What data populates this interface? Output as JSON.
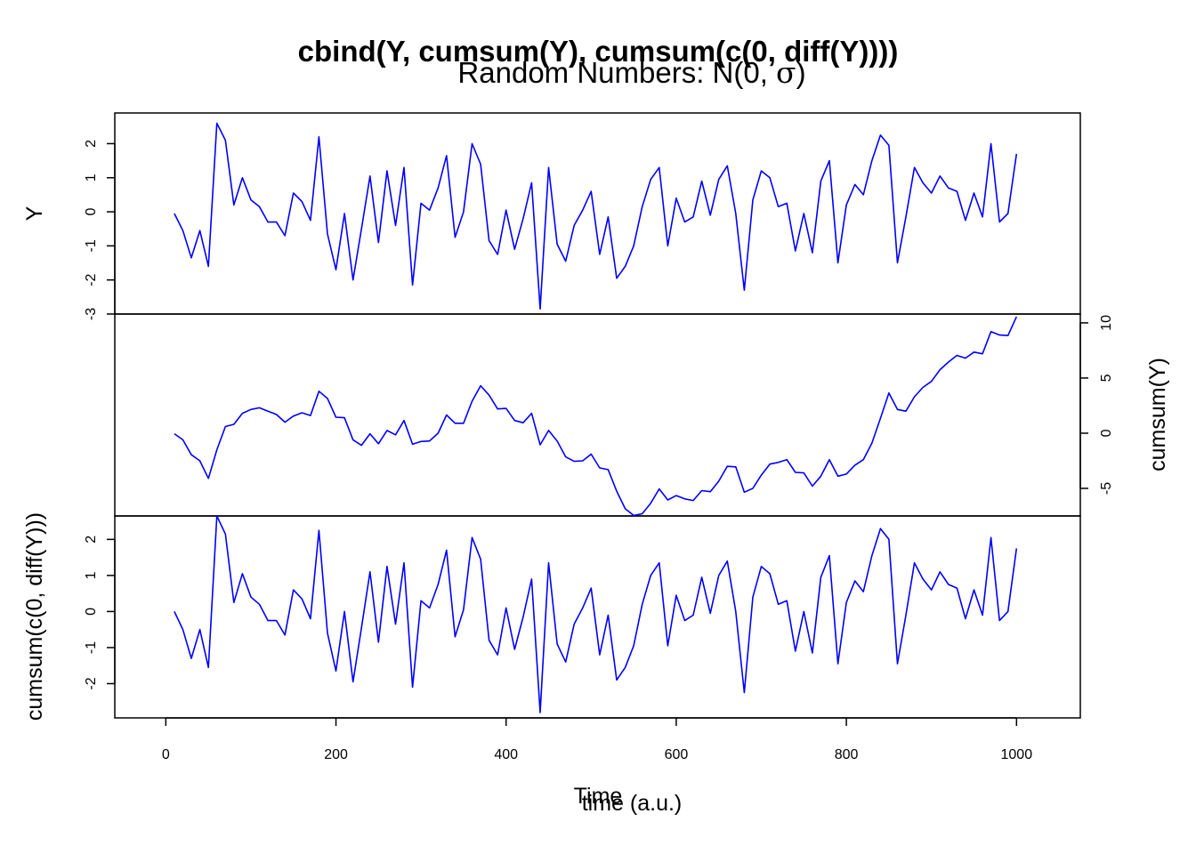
{
  "chart_data": {
    "type": "line",
    "title": "cbind(Y, cumsum(Y), cumsum(c(0, diff(Y))))",
    "subtitle_prefix": "Random Numbers: N(0, ",
    "subtitle_symbol": "σ",
    "subtitle_suffix": ")",
    "xlabel_main": "Time",
    "xlabel_overlay": "time (a.u.)",
    "x_ticks": [
      "0",
      "200",
      "400",
      "600",
      "800",
      "1000"
    ],
    "x_tick_values": [
      0,
      200,
      400,
      600,
      800,
      1000
    ],
    "xlim": [
      -60,
      1075
    ],
    "line_color": "#0000ff",
    "x": [
      10,
      20,
      30,
      40,
      50,
      60,
      70,
      80,
      90,
      100,
      110,
      120,
      130,
      140,
      150,
      160,
      170,
      180,
      190,
      200,
      210,
      220,
      230,
      240,
      250,
      260,
      270,
      280,
      290,
      300,
      310,
      320,
      330,
      340,
      350,
      360,
      370,
      380,
      390,
      400,
      410,
      420,
      430,
      440,
      450,
      460,
      470,
      480,
      490,
      500,
      510,
      520,
      530,
      540,
      550,
      560,
      570,
      580,
      590,
      600,
      610,
      620,
      630,
      640,
      650,
      660,
      670,
      680,
      690,
      700,
      710,
      720,
      730,
      740,
      750,
      760,
      770,
      780,
      790,
      800,
      810,
      820,
      830,
      840,
      850,
      860,
      870,
      880,
      890,
      900,
      910,
      920,
      930,
      940,
      950,
      960,
      970,
      980,
      990,
      1000
    ],
    "panels": [
      {
        "ylabel": "Y",
        "axis_side": "left",
        "ylim": [
          -3,
          2.9
        ],
        "y_ticks": [
          "-3",
          "-2",
          "-1",
          "0",
          "1",
          "2"
        ],
        "y_tick_values": [
          -3,
          -2,
          -1,
          0,
          1,
          2
        ],
        "values": [
          -0.05,
          -0.55,
          -1.35,
          -0.55,
          -1.6,
          2.6,
          2.1,
          0.2,
          1.0,
          0.35,
          0.15,
          -0.3,
          -0.3,
          -0.7,
          0.55,
          0.3,
          -0.25,
          2.2,
          -0.65,
          -1.7,
          -0.05,
          -2.0,
          -0.5,
          1.05,
          -0.9,
          1.2,
          -0.4,
          1.3,
          -2.15,
          0.25,
          0.05,
          0.7,
          1.65,
          -0.75,
          0.0,
          2.0,
          1.4,
          -0.85,
          -1.25,
          0.05,
          -1.1,
          -0.2,
          0.85,
          -2.85,
          1.3,
          -0.95,
          -1.45,
          -0.4,
          0.05,
          0.6,
          -1.25,
          -0.15,
          -1.95,
          -1.6,
          -1.0,
          0.15,
          0.95,
          1.3,
          -1.0,
          0.4,
          -0.3,
          -0.15,
          0.9,
          -0.1,
          0.95,
          1.35,
          -0.05,
          -2.3,
          0.35,
          1.2,
          1.0,
          0.15,
          0.25,
          -1.15,
          -0.05,
          -1.2,
          0.9,
          1.5,
          -1.5,
          0.2,
          0.8,
          0.5,
          1.5,
          2.25,
          1.95,
          -1.5,
          -0.15,
          1.3,
          0.85,
          0.55,
          1.05,
          0.7,
          0.6,
          -0.25,
          0.55,
          -0.15,
          2.0,
          -0.3,
          -0.05,
          1.7
        ]
      },
      {
        "ylabel": "cumsum(Y)",
        "axis_side": "right",
        "ylim": [
          -7.5,
          10.8
        ],
        "y_ticks": [
          "-5",
          "0",
          "5",
          "10"
        ],
        "y_tick_values": [
          -5,
          0,
          5,
          10
        ],
        "values": [
          -0.05,
          -0.6,
          -1.95,
          -2.5,
          -4.1,
          -1.5,
          0.6,
          0.8,
          1.8,
          2.15,
          2.3,
          2.0,
          1.7,
          1.0,
          1.55,
          1.85,
          1.6,
          3.8,
          3.15,
          1.45,
          1.4,
          -0.6,
          -1.1,
          -0.05,
          -0.95,
          0.25,
          -0.15,
          1.15,
          -1.0,
          -0.75,
          -0.7,
          0.0,
          1.65,
          0.9,
          0.9,
          2.9,
          4.3,
          3.45,
          2.2,
          2.25,
          1.15,
          0.95,
          1.8,
          -1.05,
          0.25,
          -0.7,
          -2.15,
          -2.55,
          -2.5,
          -1.9,
          -3.15,
          -3.3,
          -5.25,
          -6.85,
          -7.45,
          -7.3,
          -6.35,
          -5.05,
          -6.05,
          -5.65,
          -5.95,
          -6.1,
          -5.2,
          -5.3,
          -4.35,
          -3.0,
          -3.05,
          -5.35,
          -5.0,
          -3.8,
          -2.8,
          -2.65,
          -2.4,
          -3.55,
          -3.6,
          -4.8,
          -3.9,
          -2.4,
          -3.9,
          -3.7,
          -2.9,
          -2.4,
          -0.9,
          1.35,
          3.65,
          2.15,
          2.0,
          3.3,
          4.15,
          4.7,
          5.75,
          6.45,
          7.05,
          6.8,
          7.35,
          7.2,
          9.2,
          8.9,
          8.85,
          10.55
        ]
      },
      {
        "ylabel": "cumsum(c(0, diff(Y)))",
        "axis_side": "left",
        "ylim": [
          -2.95,
          2.65
        ],
        "y_ticks": [
          "-2",
          "-1",
          "0",
          "1",
          "2"
        ],
        "y_tick_values": [
          -2,
          -1,
          0,
          1,
          2
        ],
        "values": [
          0.0,
          -0.5,
          -1.3,
          -0.5,
          -1.55,
          2.65,
          2.15,
          0.25,
          1.05,
          0.4,
          0.2,
          -0.25,
          -0.25,
          -0.65,
          0.6,
          0.35,
          -0.2,
          2.25,
          -0.6,
          -1.65,
          0.0,
          -1.95,
          -0.45,
          1.1,
          -0.85,
          1.25,
          -0.35,
          1.35,
          -2.1,
          0.3,
          0.1,
          0.75,
          1.7,
          -0.7,
          0.05,
          2.05,
          1.45,
          -0.8,
          -1.2,
          0.1,
          -1.05,
          -0.15,
          0.9,
          -2.8,
          1.35,
          -0.9,
          -1.4,
          -0.35,
          0.1,
          0.65,
          -1.2,
          -0.1,
          -1.9,
          -1.55,
          -0.95,
          0.2,
          1.0,
          1.35,
          -0.95,
          0.45,
          -0.25,
          -0.1,
          0.95,
          -0.05,
          1.0,
          1.4,
          0.0,
          -2.25,
          0.4,
          1.25,
          1.05,
          0.2,
          0.3,
          -1.1,
          0.0,
          -1.15,
          0.95,
          1.55,
          -1.45,
          0.25,
          0.85,
          0.55,
          1.55,
          2.3,
          2.0,
          -1.45,
          -0.1,
          1.35,
          0.9,
          0.6,
          1.1,
          0.75,
          0.65,
          -0.2,
          0.6,
          -0.1,
          2.05,
          -0.25,
          0.0,
          1.75
        ]
      }
    ]
  }
}
